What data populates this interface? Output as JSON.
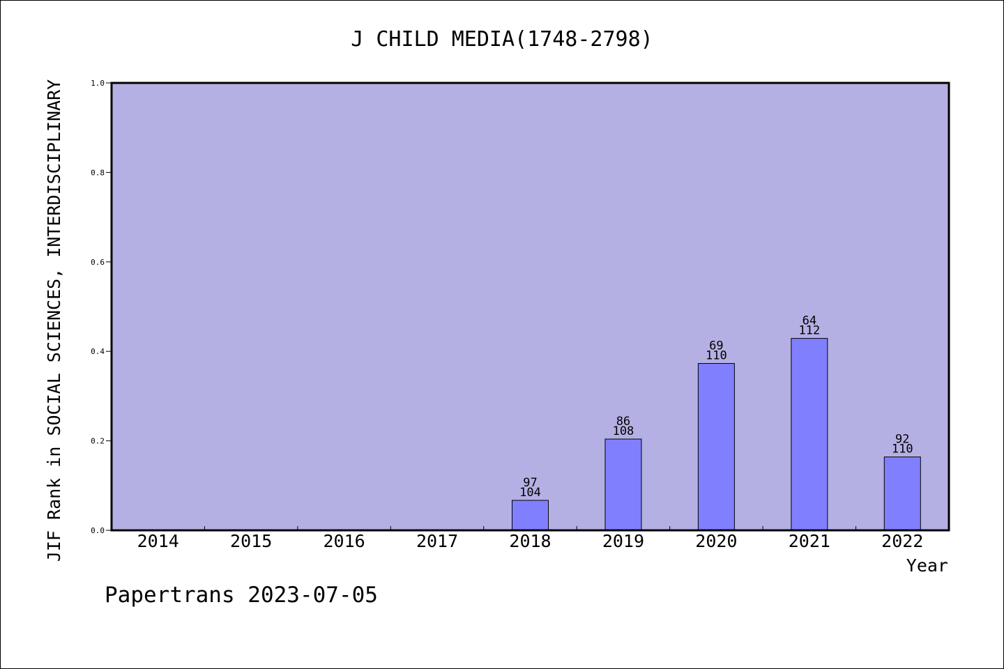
{
  "chart_data": {
    "type": "bar",
    "title": "J CHILD MEDIA(1748-2798)",
    "xlabel": "Year",
    "ylabel": "JIF Rank in SOCIAL SCIENCES, INTERDISCIPLINARY",
    "ylim": [
      0,
      1.0
    ],
    "yticks": [
      "0.0",
      "0.2",
      "0.4",
      "0.6",
      "0.8",
      "1.0"
    ],
    "categories": [
      "2014",
      "2015",
      "2016",
      "2017",
      "2018",
      "2019",
      "2020",
      "2021",
      "2022"
    ],
    "values": [
      null,
      null,
      null,
      null,
      0.067,
      0.204,
      0.373,
      0.429,
      0.164
    ],
    "labels": [
      null,
      null,
      null,
      null,
      {
        "rank": "97",
        "total": "104"
      },
      {
        "rank": "86",
        "total": "108"
      },
      {
        "rank": "69",
        "total": "110"
      },
      {
        "rank": "64",
        "total": "112"
      },
      {
        "rank": "92",
        "total": "110"
      }
    ],
    "grid": false,
    "colors": {
      "plot_background": "#b5b0e3",
      "bar": "#8080ff",
      "bar_edge": "#000000"
    }
  },
  "footer": {
    "watermark": "Papertrans 2023-07-05"
  }
}
